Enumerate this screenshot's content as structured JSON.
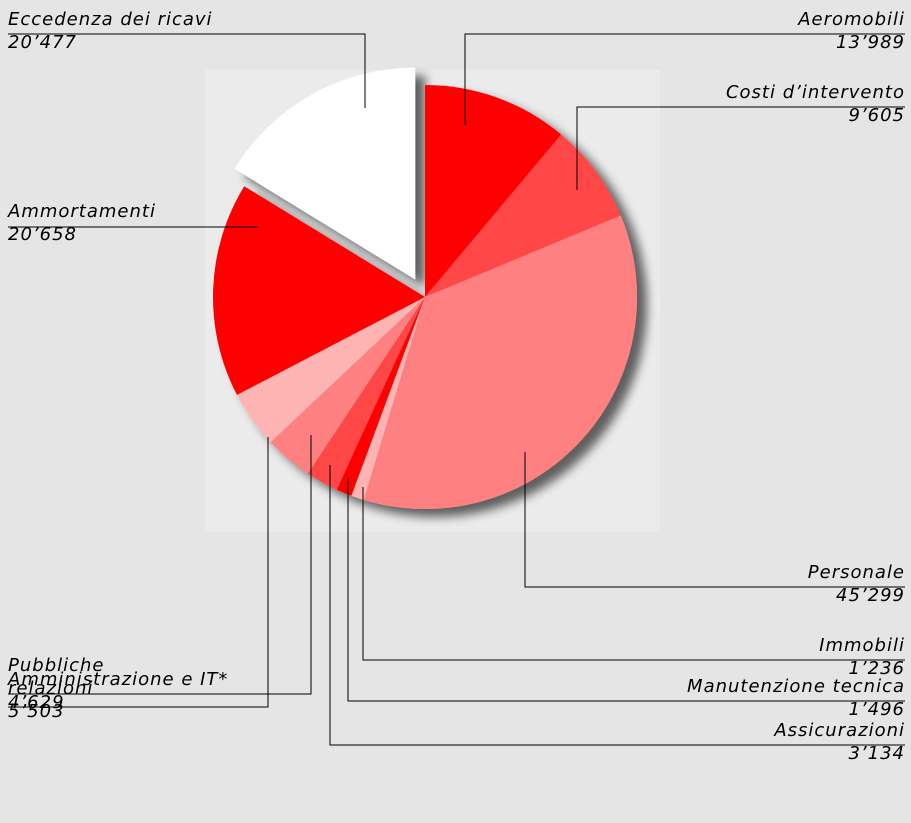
{
  "chart_data": {
    "type": "pie",
    "labels": [
      "Aeromobili",
      "Costi d’intervento",
      "Personale",
      "Immobili",
      "Manutenzione tecnica",
      "Assicurazioni",
      "Amministrazione e IT*",
      "Pubbliche relazioni",
      "Ammortamenti",
      "Eccedenza dei ricavi"
    ],
    "values": [
      13989,
      9605,
      45299,
      1236,
      1496,
      3134,
      4629,
      5503,
      20658,
      20477
    ],
    "value_labels": [
      "13’989",
      "9’605",
      "45’299",
      "1’236",
      "1’496",
      "3’134",
      "4’629",
      "5’503",
      "20’658",
      "20’477"
    ],
    "colors": [
      "#ff0000",
      "#ff4646",
      "#ff8080",
      "#ffb4b4",
      "#ff0000",
      "#ff4646",
      "#ff8080",
      "#ffb4b4",
      "#ff0000",
      "#ffffff"
    ],
    "exploded": [
      false,
      false,
      false,
      false,
      false,
      false,
      false,
      false,
      false,
      true
    ]
  }
}
